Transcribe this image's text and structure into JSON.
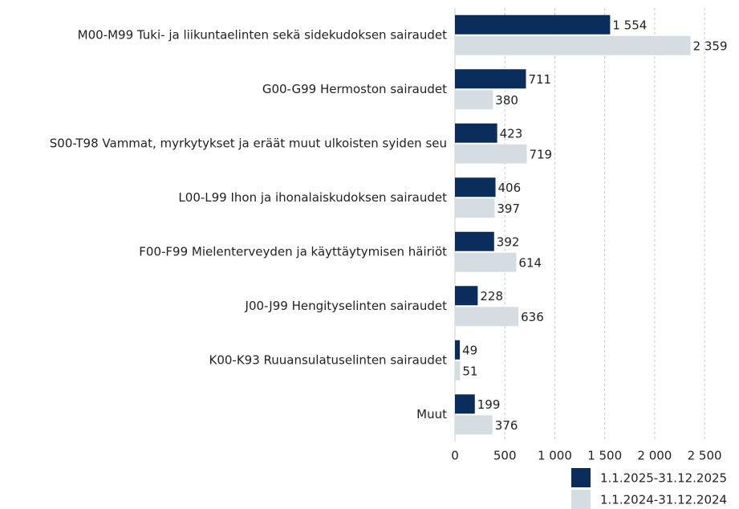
{
  "chart_data": {
    "type": "bar",
    "orientation": "horizontal",
    "categories": [
      "M00-M99 Tuki- ja liikuntaelinten sekä sidekudoksen sairaudet",
      "G00-G99 Hermoston sairaudet",
      "S00-T98 Vammat, myrkytykset ja eräät muut ulkoisten syiden seu",
      "L00-L99 Ihon ja ihonalaiskudoksen sairaudet",
      "F00-F99 Mielenterveyden ja käyttäytymisen häiriöt",
      "J00-J99 Hengityselinten sairaudet",
      "K00-K93 Ruuansulatuselinten sairaudet",
      "Muut"
    ],
    "series": [
      {
        "name": "1.1.2025-31.12.2025",
        "color": "#0b2d5b",
        "values": [
          1554,
          711,
          423,
          406,
          392,
          228,
          49,
          199
        ],
        "value_labels": [
          "1 554",
          "711",
          "423",
          "406",
          "392",
          "228",
          "49",
          "199"
        ]
      },
      {
        "name": "1.1.2024-31.12.2024",
        "color": "#d5dde3",
        "values": [
          2359,
          380,
          719,
          397,
          614,
          636,
          51,
          376
        ],
        "value_labels": [
          "2 359",
          "380",
          "719",
          "397",
          "614",
          "636",
          "51",
          "376"
        ]
      }
    ],
    "xlim": [
      0,
      2700
    ],
    "xticks": [
      0,
      500,
      {
        "value": 1000,
        "label": "1 000"
      },
      {
        "value": 1500,
        "label": "1 500"
      },
      {
        "value": 2000,
        "label": "2 000"
      },
      {
        "value": 2500,
        "label": "2 500"
      }
    ],
    "grid": true,
    "legend": "bottom-right"
  }
}
